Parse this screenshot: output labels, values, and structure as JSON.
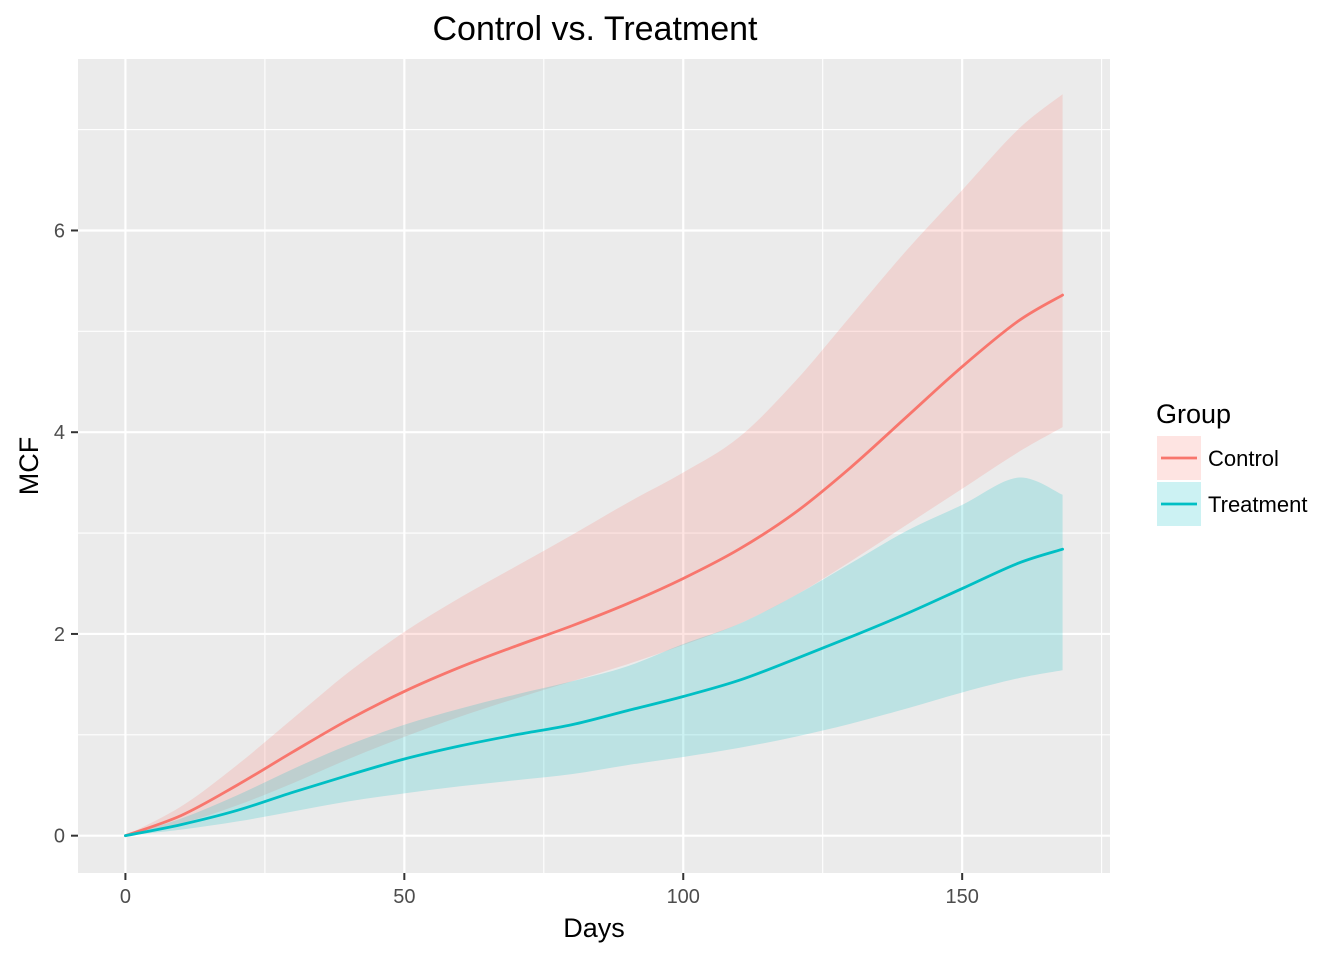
{
  "chart_data": {
    "type": "line",
    "title": "Control vs. Treatment",
    "xlabel": "Days",
    "ylabel": "MCF",
    "xlim": [
      -8.5,
      176.5
    ],
    "ylim": [
      -0.37,
      7.7
    ],
    "x_ticks": [
      0,
      50,
      100,
      150
    ],
    "x_tick_labels": [
      "0",
      "50",
      "100",
      "150"
    ],
    "y_ticks": [
      0,
      2,
      4,
      6
    ],
    "y_tick_labels": [
      "0",
      "2",
      "4",
      "6"
    ],
    "grid": true,
    "legend": {
      "title": "Group",
      "placement": "right"
    },
    "x": [
      0,
      10,
      20,
      30,
      40,
      50,
      60,
      70,
      80,
      90,
      100,
      110,
      120,
      130,
      140,
      150,
      160,
      168
    ],
    "series": [
      {
        "name": "Control",
        "color": "#F8766D",
        "values": [
          0,
          0.2,
          0.5,
          0.83,
          1.15,
          1.43,
          1.67,
          1.88,
          2.08,
          2.3,
          2.55,
          2.84,
          3.2,
          3.65,
          4.15,
          4.65,
          5.1,
          5.36
        ],
        "lower": [
          0,
          0.12,
          0.3,
          0.52,
          0.76,
          0.98,
          1.18,
          1.36,
          1.53,
          1.7,
          1.89,
          2.1,
          2.38,
          2.72,
          3.08,
          3.44,
          3.8,
          4.05
        ],
        "upper": [
          0,
          0.29,
          0.7,
          1.16,
          1.62,
          2.02,
          2.36,
          2.67,
          2.98,
          3.3,
          3.6,
          3.95,
          4.5,
          5.15,
          5.8,
          6.4,
          7.0,
          7.35
        ]
      },
      {
        "name": "Treatment",
        "color": "#00BFC4",
        "values": [
          0,
          0.11,
          0.25,
          0.43,
          0.6,
          0.76,
          0.89,
          1.0,
          1.1,
          1.24,
          1.38,
          1.54,
          1.75,
          1.97,
          2.2,
          2.45,
          2.7,
          2.84
        ],
        "lower": [
          0,
          0.06,
          0.14,
          0.24,
          0.34,
          0.42,
          0.49,
          0.55,
          0.61,
          0.7,
          0.78,
          0.87,
          0.98,
          1.11,
          1.26,
          1.42,
          1.56,
          1.64
        ],
        "upper": [
          0,
          0.17,
          0.4,
          0.66,
          0.9,
          1.1,
          1.26,
          1.4,
          1.53,
          1.68,
          1.9,
          2.1,
          2.38,
          2.7,
          3.02,
          3.28,
          3.55,
          3.38
        ]
      }
    ]
  }
}
